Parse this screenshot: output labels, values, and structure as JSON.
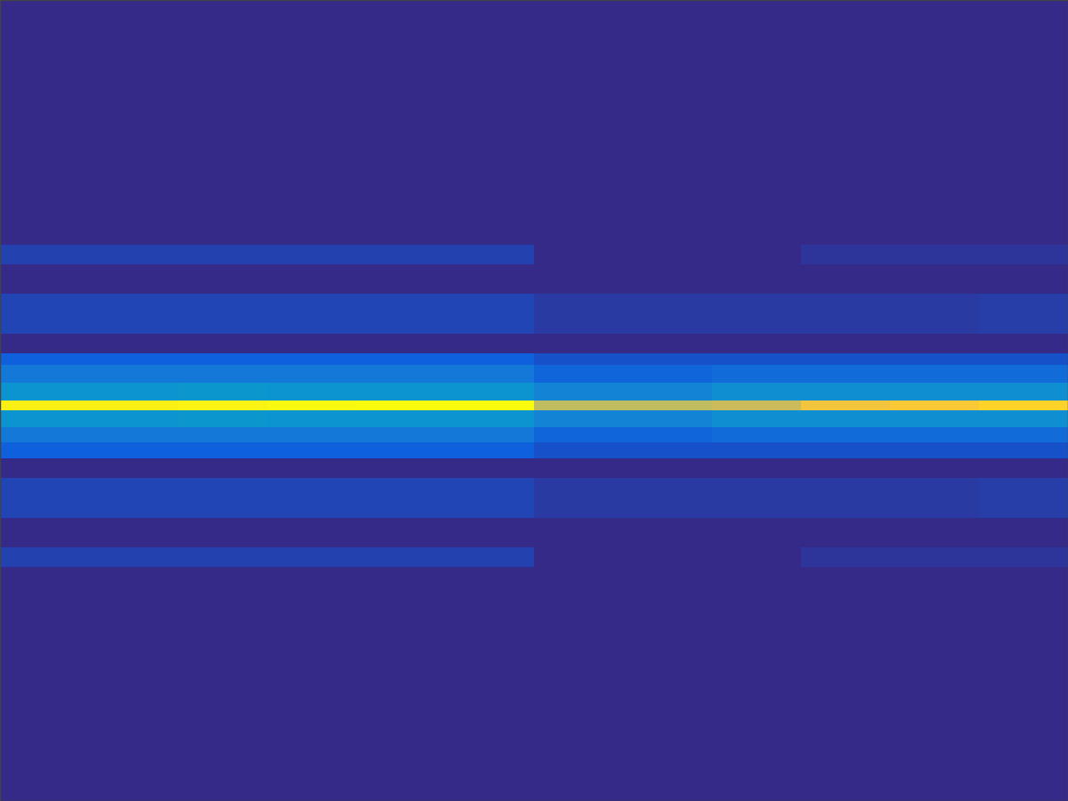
{
  "chart_data": {
    "type": "heatmap",
    "x": [
      0,
      100,
      200,
      300,
      400,
      500,
      600,
      700,
      800,
      900,
      1000,
      1100,
      1200
    ],
    "y": [
      0,
      275,
      297,
      330,
      375,
      397,
      410,
      430,
      450,
      461,
      480,
      497,
      515,
      537,
      582,
      615,
      637,
      900
    ],
    "cells": [
      [
        0,
        0,
        0,
        0,
        0,
        0,
        0,
        0,
        0,
        0,
        0,
        0
      ],
      [
        0.06,
        0.06,
        0.06,
        0.06,
        0.06,
        0.06,
        0,
        0,
        0,
        0.03,
        0.03,
        0.03
      ],
      [
        0,
        0,
        0,
        0,
        0,
        0,
        0,
        0,
        0,
        0,
        0,
        0
      ],
      [
        0.07,
        0.07,
        0.07,
        0.07,
        0.07,
        0.07,
        0.04,
        0.04,
        0.04,
        0.04,
        0.04,
        0.05
      ],
      [
        0,
        0,
        0,
        0,
        0,
        0,
        0,
        0,
        0,
        0,
        0,
        0
      ],
      [
        0.14,
        0.14,
        0.14,
        0.14,
        0.14,
        0.14,
        0.1,
        0.1,
        0.1,
        0.1,
        0.1,
        0.1
      ],
      [
        0.22,
        0.22,
        0.22,
        0.22,
        0.22,
        0.22,
        0.16,
        0.16,
        0.18,
        0.18,
        0.18,
        0.18
      ],
      [
        0.32,
        0.32,
        0.33,
        0.32,
        0.32,
        0.32,
        0.26,
        0.26,
        0.3,
        0.3,
        0.3,
        0.3
      ],
      [
        0.97,
        0.97,
        0.98,
        0.99,
        1.0,
        1.0,
        0.72,
        0.72,
        0.74,
        0.84,
        0.86,
        0.9
      ],
      [
        0.32,
        0.32,
        0.33,
        0.32,
        0.32,
        0.32,
        0.26,
        0.26,
        0.3,
        0.3,
        0.3,
        0.3
      ],
      [
        0.22,
        0.22,
        0.22,
        0.22,
        0.22,
        0.22,
        0.16,
        0.16,
        0.18,
        0.18,
        0.18,
        0.18
      ],
      [
        0.14,
        0.14,
        0.14,
        0.14,
        0.14,
        0.14,
        0.1,
        0.1,
        0.1,
        0.1,
        0.1,
        0.1
      ],
      [
        0,
        0,
        0,
        0,
        0,
        0,
        0,
        0,
        0,
        0,
        0,
        0
      ],
      [
        0.07,
        0.07,
        0.07,
        0.07,
        0.07,
        0.07,
        0.04,
        0.04,
        0.04,
        0.04,
        0.04,
        0.05
      ],
      [
        0,
        0,
        0,
        0,
        0,
        0,
        0,
        0,
        0,
        0,
        0,
        0
      ],
      [
        0.06,
        0.06,
        0.06,
        0.06,
        0.06,
        0.06,
        0,
        0,
        0,
        0.03,
        0.03,
        0.03
      ],
      [
        0,
        0,
        0,
        0,
        0,
        0,
        0,
        0,
        0,
        0,
        0,
        0
      ]
    ],
    "color_range": [
      0,
      1
    ],
    "xlim": [
      0,
      1200
    ],
    "ylim": [
      900,
      0
    ],
    "tick_labels": false
  }
}
